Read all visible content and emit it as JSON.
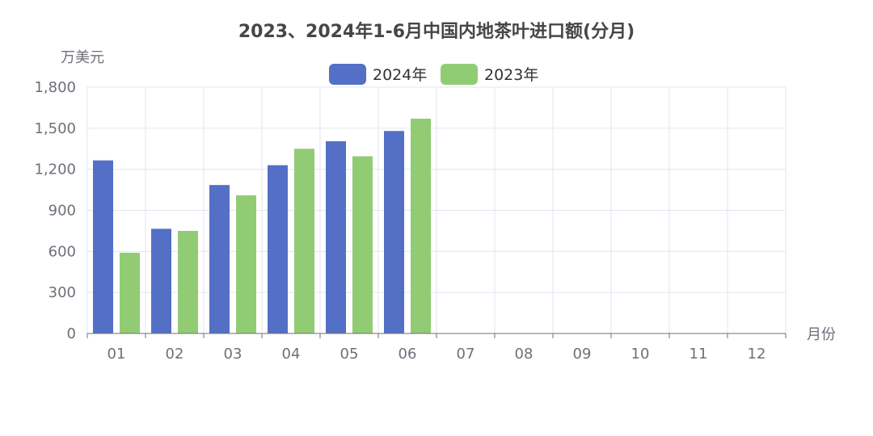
{
  "chart_data": {
    "type": "bar",
    "title": "2023、2024年1-6月中国内地茶叶进口额(分月)",
    "ylabel": "万美元",
    "xlabel": "月份",
    "categories": [
      "01",
      "02",
      "03",
      "04",
      "05",
      "06",
      "07",
      "08",
      "09",
      "10",
      "11",
      "12"
    ],
    "ylim": [
      0,
      1800
    ],
    "yticks": [
      0,
      300,
      600,
      900,
      1200,
      1500,
      1800
    ],
    "ytick_labels": [
      "0",
      "300",
      "600",
      "900",
      "1,200",
      "1,500",
      "1,800"
    ],
    "grid": true,
    "legend_position": "top-center",
    "series": [
      {
        "name": "2024年",
        "color": "#5470c6",
        "values": [
          1265,
          765,
          1085,
          1230,
          1405,
          1480,
          null,
          null,
          null,
          null,
          null,
          null
        ]
      },
      {
        "name": "2023年",
        "color": "#91cc75",
        "values": [
          590,
          750,
          1010,
          1350,
          1295,
          1570,
          null,
          null,
          null,
          null,
          null,
          null
        ]
      }
    ]
  }
}
